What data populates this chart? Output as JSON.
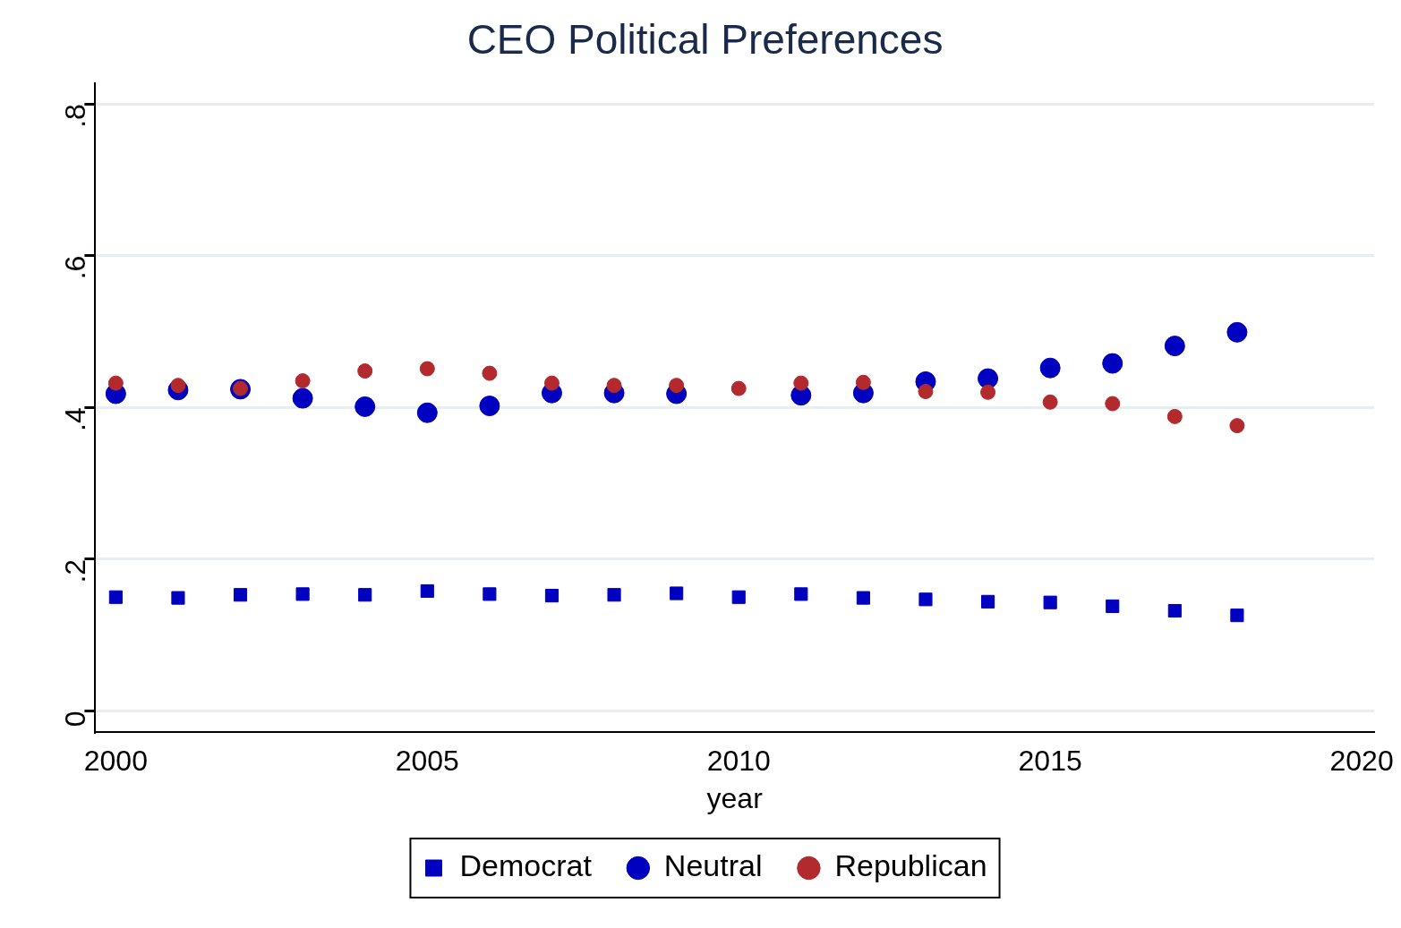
{
  "chart_data": {
    "type": "scatter",
    "title": "CEO Political Preferences",
    "xlabel": "year",
    "x": [
      2000,
      2001,
      2002,
      2003,
      2004,
      2005,
      2006,
      2007,
      2008,
      2009,
      2010,
      2011,
      2012,
      2013,
      2014,
      2015,
      2016,
      2017,
      2018
    ],
    "series": [
      {
        "name": "Democrat",
        "color": "#0000c0",
        "marker": "square",
        "values": [
          0.15,
          0.149,
          0.153,
          0.154,
          0.153,
          0.158,
          0.154,
          0.152,
          0.153,
          0.155,
          0.15,
          0.154,
          0.149,
          0.147,
          0.144,
          0.143,
          0.138,
          0.132,
          0.126
        ]
      },
      {
        "name": "Neutral",
        "color": "#0000c0",
        "marker": "circle",
        "values": [
          0.418,
          0.423,
          0.424,
          0.412,
          0.401,
          0.393,
          0.402,
          0.419,
          0.419,
          0.418,
          null,
          0.416,
          0.419,
          0.434,
          0.438,
          0.452,
          0.458,
          0.481,
          0.499
        ]
      },
      {
        "name": "Republican",
        "color": "#b22a2e",
        "marker": "circle",
        "values": [
          0.432,
          0.429,
          0.425,
          0.435,
          0.448,
          0.451,
          0.445,
          0.432,
          0.429,
          0.429,
          0.425,
          0.432,
          0.433,
          0.421,
          0.42,
          0.407,
          0.405,
          0.388,
          0.376
        ]
      }
    ],
    "xlim": [
      1999.67,
      2020.2
    ],
    "xticks": [
      2000,
      2005,
      2010,
      2015,
      2020
    ],
    "ylim": [
      -0.028,
      0.827
    ],
    "yticks": [
      {
        "value": 0,
        "label": "0"
      },
      {
        "value": 0.2,
        "label": ".2"
      },
      {
        "value": 0.4,
        "label": ".4"
      },
      {
        "value": 0.6,
        "label": ".6"
      },
      {
        "value": 0.8,
        "label": ".8"
      }
    ],
    "grid": "y",
    "legend": "bottom"
  }
}
